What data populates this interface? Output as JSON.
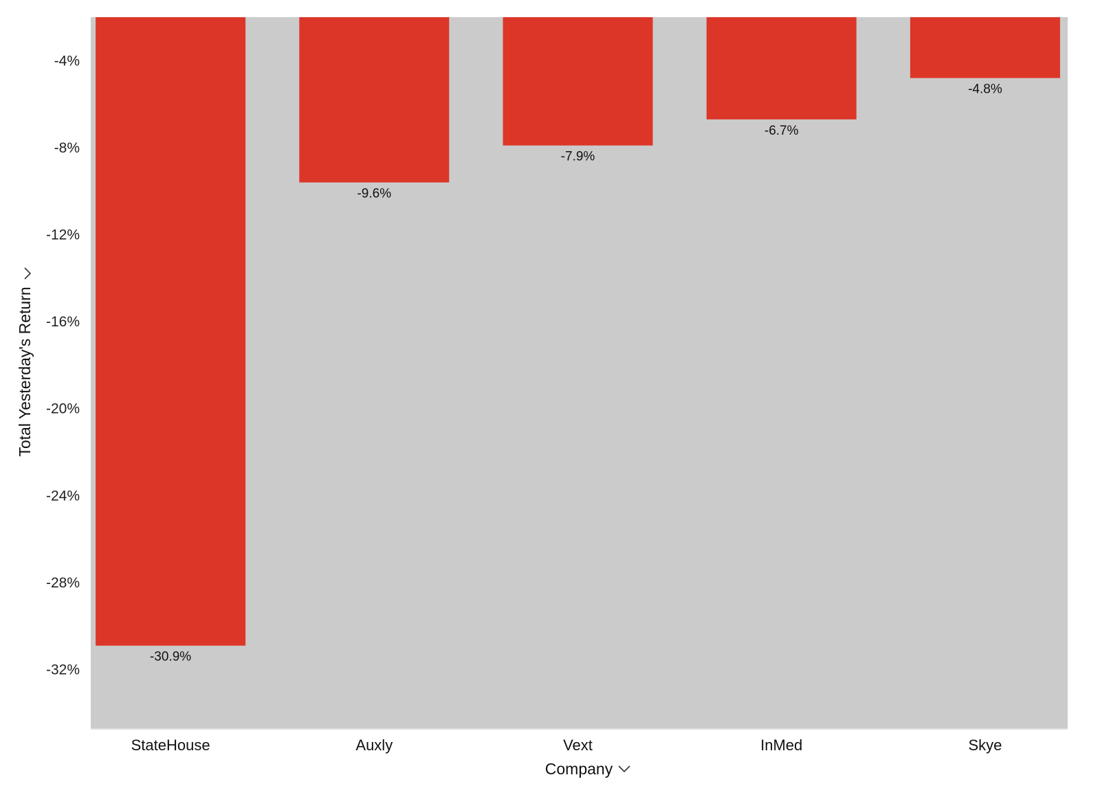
{
  "chart_data": {
    "type": "bar",
    "title": "",
    "xlabel": "Company",
    "ylabel": "Total Yesterday's Return",
    "categories": [
      "StateHouse",
      "Auxly",
      "Vext",
      "InMed",
      "Skye"
    ],
    "values": [
      -30.9,
      -9.6,
      -7.9,
      -6.7,
      -4.8
    ],
    "value_labels": [
      "-30.9%",
      "-9.6%",
      "-7.9%",
      "-6.7%",
      "-4.8%"
    ],
    "ylim": [
      -34.7,
      -2.0
    ],
    "yticks": [
      -4,
      -8,
      -12,
      -16,
      -20,
      -24,
      -28,
      -32
    ],
    "ytick_labels": [
      "-4%",
      "-8%",
      "-12%",
      "-16%",
      "-20%",
      "-24%",
      "-28%",
      "-32%"
    ],
    "grid": false,
    "legend": "none",
    "colors": {
      "bar": "#dc3629",
      "plot_background": "#cbcbcb",
      "axis_line": "#e0e0e0"
    },
    "icons": {
      "xlabel_dropdown": "chevron-down-icon",
      "ylabel_dropdown": "chevron-down-icon"
    }
  }
}
